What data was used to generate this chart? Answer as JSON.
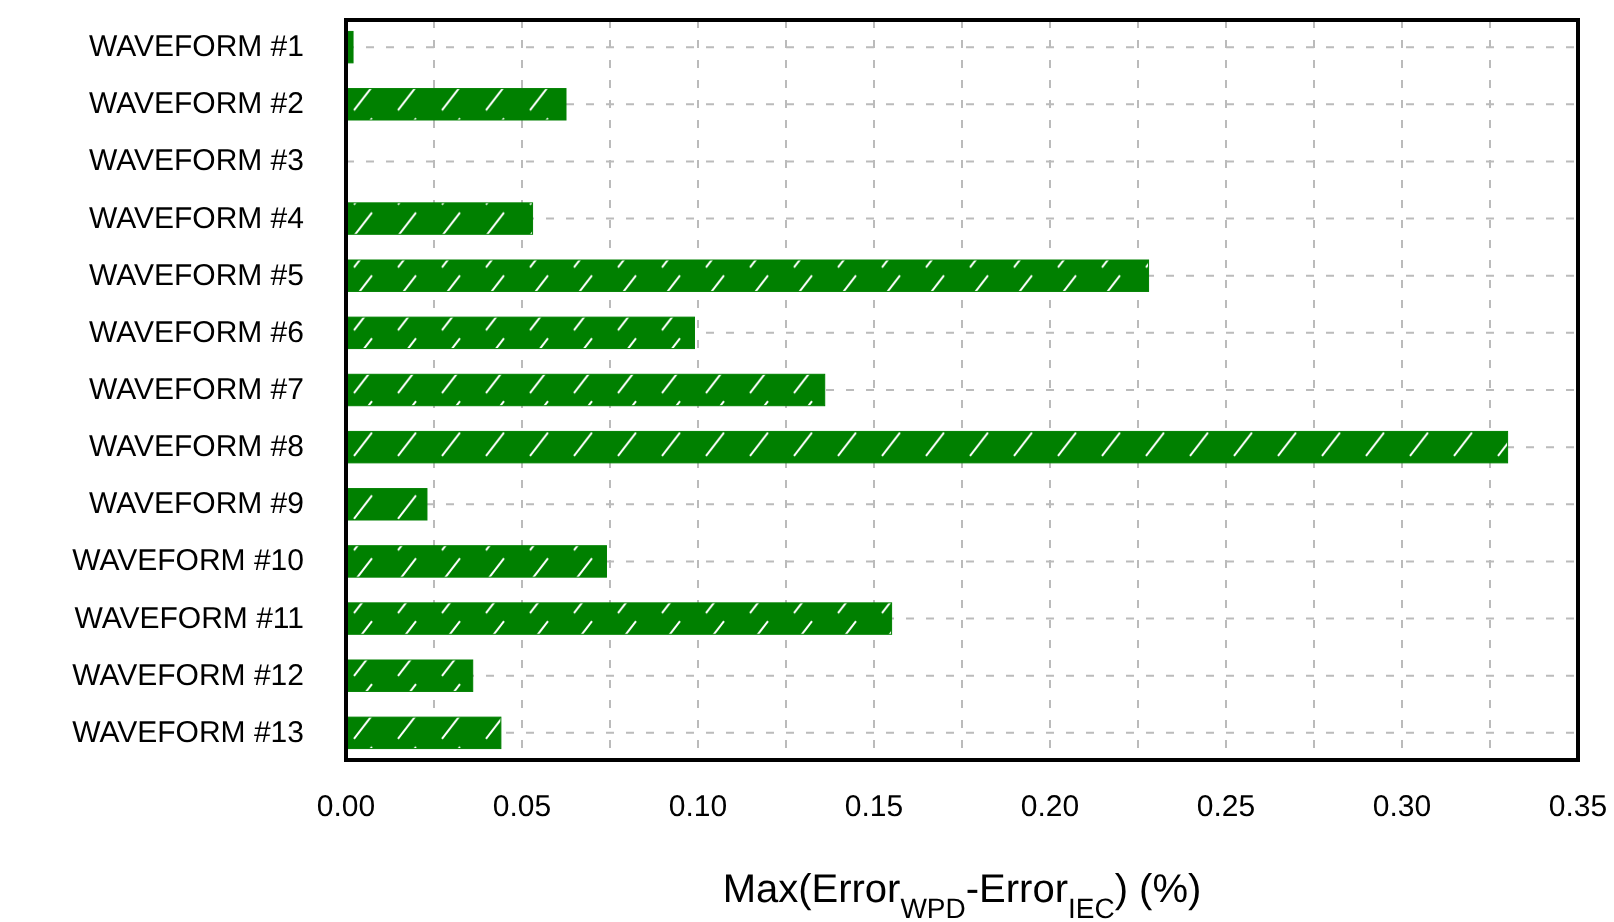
{
  "chart_data": {
    "type": "bar",
    "orientation": "horizontal",
    "categories": [
      "WAVEFORM #1",
      "WAVEFORM #2",
      "WAVEFORM #3",
      "WAVEFORM #4",
      "WAVEFORM #5",
      "WAVEFORM #6",
      "WAVEFORM #7",
      "WAVEFORM #8",
      "WAVEFORM #9",
      "WAVEFORM #10",
      "WAVEFORM #11",
      "WAVEFORM #12",
      "WAVEFORM #13"
    ],
    "values": [
      0.002,
      0.0625,
      0,
      0.053,
      0.228,
      0.099,
      0.136,
      0.33,
      0.023,
      0.074,
      0.155,
      0.036,
      0.044
    ],
    "color": "#008000",
    "xlim": [
      0,
      0.35
    ],
    "xticks": [
      {
        "value": 0,
        "label": "0.00"
      },
      {
        "value": 0.025,
        "label": null
      },
      {
        "value": 0.05,
        "label": "0.05"
      },
      {
        "value": 0.075,
        "label": null
      },
      {
        "value": 0.1,
        "label": "0.10"
      },
      {
        "value": 0.125,
        "label": null
      },
      {
        "value": 0.15,
        "label": "0.15"
      },
      {
        "value": 0.175,
        "label": null
      },
      {
        "value": 0.2,
        "label": "0.20"
      },
      {
        "value": 0.225,
        "label": null
      },
      {
        "value": 0.25,
        "label": "0.25"
      },
      {
        "value": 0.275,
        "label": null
      },
      {
        "value": 0.3,
        "label": "0.30"
      },
      {
        "value": 0.325,
        "label": null
      },
      {
        "value": 0.35,
        "label": "0.35"
      }
    ],
    "xlabel": "Max(Error$_{WPD}$-Error$_{IEC}$) (%)",
    "grid": true
  }
}
